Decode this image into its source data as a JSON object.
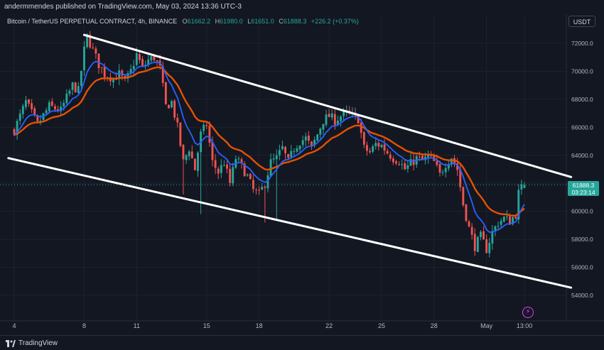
{
  "header": {
    "attribution": "andermmendes published on TradingView.com, May 03, 2024 13:36 UTC-3"
  },
  "legend": {
    "symbol": "Bitcoin / TetherUS PERPETUAL CONTRACT, 4h, BINANCE",
    "open_label": "O",
    "open": "61662.2",
    "high_label": "H",
    "high": "61980.0",
    "low_label": "L",
    "low": "61651.0",
    "close_label": "C",
    "close": "61888.3",
    "change": "+226.2 (+0.37%)"
  },
  "currency": "USDT",
  "price_tag": {
    "price": "61888.3",
    "countdown": "03:23:14"
  },
  "footer": {
    "brand": "TradingView"
  },
  "colors": {
    "background": "#131722",
    "up": "#26a69a",
    "down": "#ef5350",
    "ema_fast": "#2962ff",
    "ema_slow": "#e65100",
    "channel": "#ffffff"
  },
  "chart_data": {
    "type": "candlestick",
    "title": "Bitcoin / TetherUS PERPETUAL CONTRACT, 4h, BINANCE",
    "x_ticks": [
      {
        "label": "4",
        "t": 0
      },
      {
        "label": "8",
        "t": 24
      },
      {
        "label": "11",
        "t": 42
      },
      {
        "label": "15",
        "t": 66
      },
      {
        "label": "18",
        "t": 84
      },
      {
        "label": "22",
        "t": 108
      },
      {
        "label": "25",
        "t": 126
      },
      {
        "label": "28",
        "t": 144
      },
      {
        "label": "May",
        "t": 162
      },
      {
        "label": "13:00",
        "t": 175
      }
    ],
    "y_ticks": [
      54000,
      56000,
      58000,
      60000,
      62000,
      64000,
      66000,
      68000,
      70000,
      72000
    ],
    "y_tick_labels": [
      "54000.0",
      "56000.0",
      "58000.0",
      "60000.0",
      "62000.0",
      "64000.0",
      "66000.0",
      "68000.0",
      "70000.0",
      "72000.0"
    ],
    "ylim": [
      53000,
      74000
    ],
    "last_price": 61888.3,
    "price_path": [
      [
        0,
        65800
      ],
      [
        4,
        67800
      ],
      [
        8,
        66200
      ],
      [
        12,
        67500
      ],
      [
        16,
        67200
      ],
      [
        20,
        69000
      ],
      [
        22,
        68600
      ],
      [
        24,
        71500
      ],
      [
        25,
        72500
      ],
      [
        27,
        71500
      ],
      [
        29,
        70500
      ],
      [
        31,
        69800
      ],
      [
        34,
        69500
      ],
      [
        36,
        69800
      ],
      [
        38,
        69200
      ],
      [
        40,
        70000
      ],
      [
        42,
        71200
      ],
      [
        44,
        70200
      ],
      [
        46,
        70800
      ],
      [
        48,
        71000
      ],
      [
        50,
        70200
      ],
      [
        52,
        67500
      ],
      [
        54,
        67800
      ],
      [
        56,
        66000
      ],
      [
        58,
        63500
      ],
      [
        60,
        64500
      ],
      [
        62,
        63000
      ],
      [
        64,
        65500
      ],
      [
        66,
        66200
      ],
      [
        68,
        63500
      ],
      [
        70,
        62800
      ],
      [
        72,
        63500
      ],
      [
        74,
        62000
      ],
      [
        76,
        63800
      ],
      [
        78,
        63200
      ],
      [
        80,
        62500
      ],
      [
        82,
        61500
      ],
      [
        84,
        61200
      ],
      [
        86,
        62000
      ],
      [
        88,
        63500
      ],
      [
        90,
        63800
      ],
      [
        92,
        64500
      ],
      [
        94,
        63500
      ],
      [
        96,
        64500
      ],
      [
        98,
        65000
      ],
      [
        100,
        65200
      ],
      [
        102,
        64500
      ],
      [
        104,
        65500
      ],
      [
        106,
        66500
      ],
      [
        108,
        66800
      ],
      [
        110,
        66500
      ],
      [
        112,
        66800
      ],
      [
        114,
        67000
      ],
      [
        116,
        66800
      ],
      [
        118,
        66600
      ],
      [
        120,
        64500
      ],
      [
        122,
        64200
      ],
      [
        124,
        64800
      ],
      [
        126,
        64700
      ],
      [
        128,
        64200
      ],
      [
        130,
        63800
      ],
      [
        132,
        63600
      ],
      [
        134,
        63000
      ],
      [
        136,
        63400
      ],
      [
        138,
        63800
      ],
      [
        140,
        63600
      ],
      [
        142,
        63900
      ],
      [
        144,
        63500
      ],
      [
        146,
        62600
      ],
      [
        148,
        63400
      ],
      [
        150,
        63900
      ],
      [
        152,
        63000
      ],
      [
        154,
        60500
      ],
      [
        156,
        58800
      ],
      [
        158,
        57500
      ],
      [
        160,
        58200
      ],
      [
        162,
        57300
      ],
      [
        164,
        58500
      ],
      [
        166,
        59200
      ],
      [
        168,
        59500
      ],
      [
        170,
        59300
      ],
      [
        172,
        59800
      ],
      [
        173,
        61300
      ],
      [
        174,
        61662.2
      ],
      [
        175,
        61888.3
      ]
    ],
    "channel_lines": [
      {
        "name": "upper",
        "from": [
          24,
          72600
        ],
        "to": [
          191,
          62450
        ]
      },
      {
        "name": "lower",
        "from": [
          -2,
          63800
        ],
        "to": [
          191,
          54550
        ]
      }
    ]
  }
}
